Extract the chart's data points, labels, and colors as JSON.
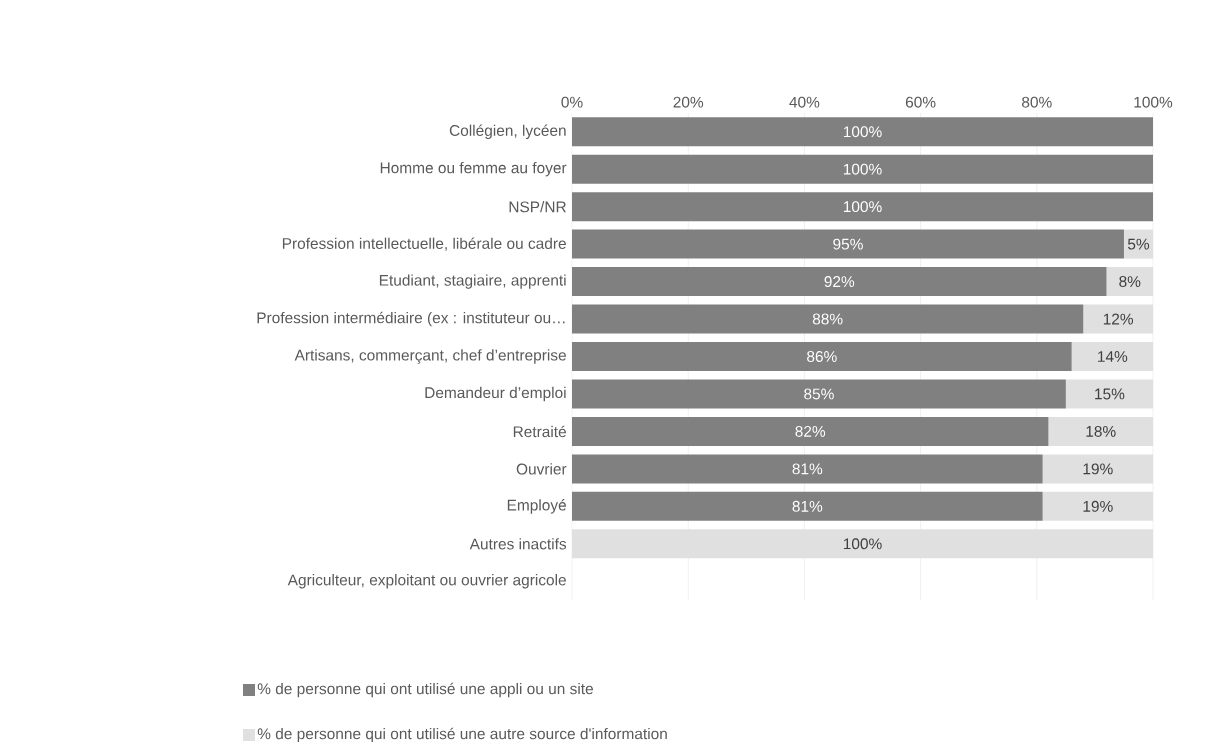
{
  "chart_data": {
    "type": "bar",
    "orientation": "horizontal",
    "stacked": true,
    "categories": [
      "Collégien, lycéen",
      "Homme ou femme au foyer",
      "NSP/NR",
      "Profession intellectuelle, libérale ou cadre",
      "Etudiant, stagiaire, apprenti",
      "Profession intermédiaire (ex : instituteur ou…",
      "Artisans, commerçant, chef d’entreprise",
      "Demandeur d’emploi",
      "Retraité",
      "Ouvrier",
      "Employé",
      "Autres inactifs",
      "Agriculteur, exploitant ou ouvrier agricole"
    ],
    "series": [
      {
        "name": "% de personne qui ont utilisé une appli ou un site",
        "color": "#808080",
        "values": [
          100,
          100,
          100,
          95,
          92,
          88,
          86,
          85,
          82,
          81,
          81,
          0,
          0
        ],
        "value_labels": [
          "100%",
          "100%",
          "100%",
          "95%",
          "92%",
          "88%",
          "86%",
          "85%",
          "82%",
          "81%",
          "81%",
          null,
          null
        ]
      },
      {
        "name": "% de personne qui ont utilisé une autre source d'information",
        "color": "#e0e0e0",
        "values": [
          0,
          0,
          0,
          5,
          8,
          12,
          14,
          15,
          18,
          19,
          19,
          100,
          0
        ],
        "value_labels": [
          null,
          null,
          null,
          "5%",
          "8%",
          "12%",
          "14%",
          "15%",
          "18%",
          "19%",
          "19%",
          "100%",
          null
        ]
      }
    ],
    "xlim": [
      0,
      100
    ],
    "xticks": [
      {
        "value": 0,
        "label": "0%"
      },
      {
        "value": 20,
        "label": "20%"
      },
      {
        "value": 40,
        "label": "40%"
      },
      {
        "value": 60,
        "label": "60%"
      },
      {
        "value": 80,
        "label": "80%"
      },
      {
        "value": 100,
        "label": "100%"
      }
    ],
    "grid": "x",
    "legend": "bottom"
  }
}
